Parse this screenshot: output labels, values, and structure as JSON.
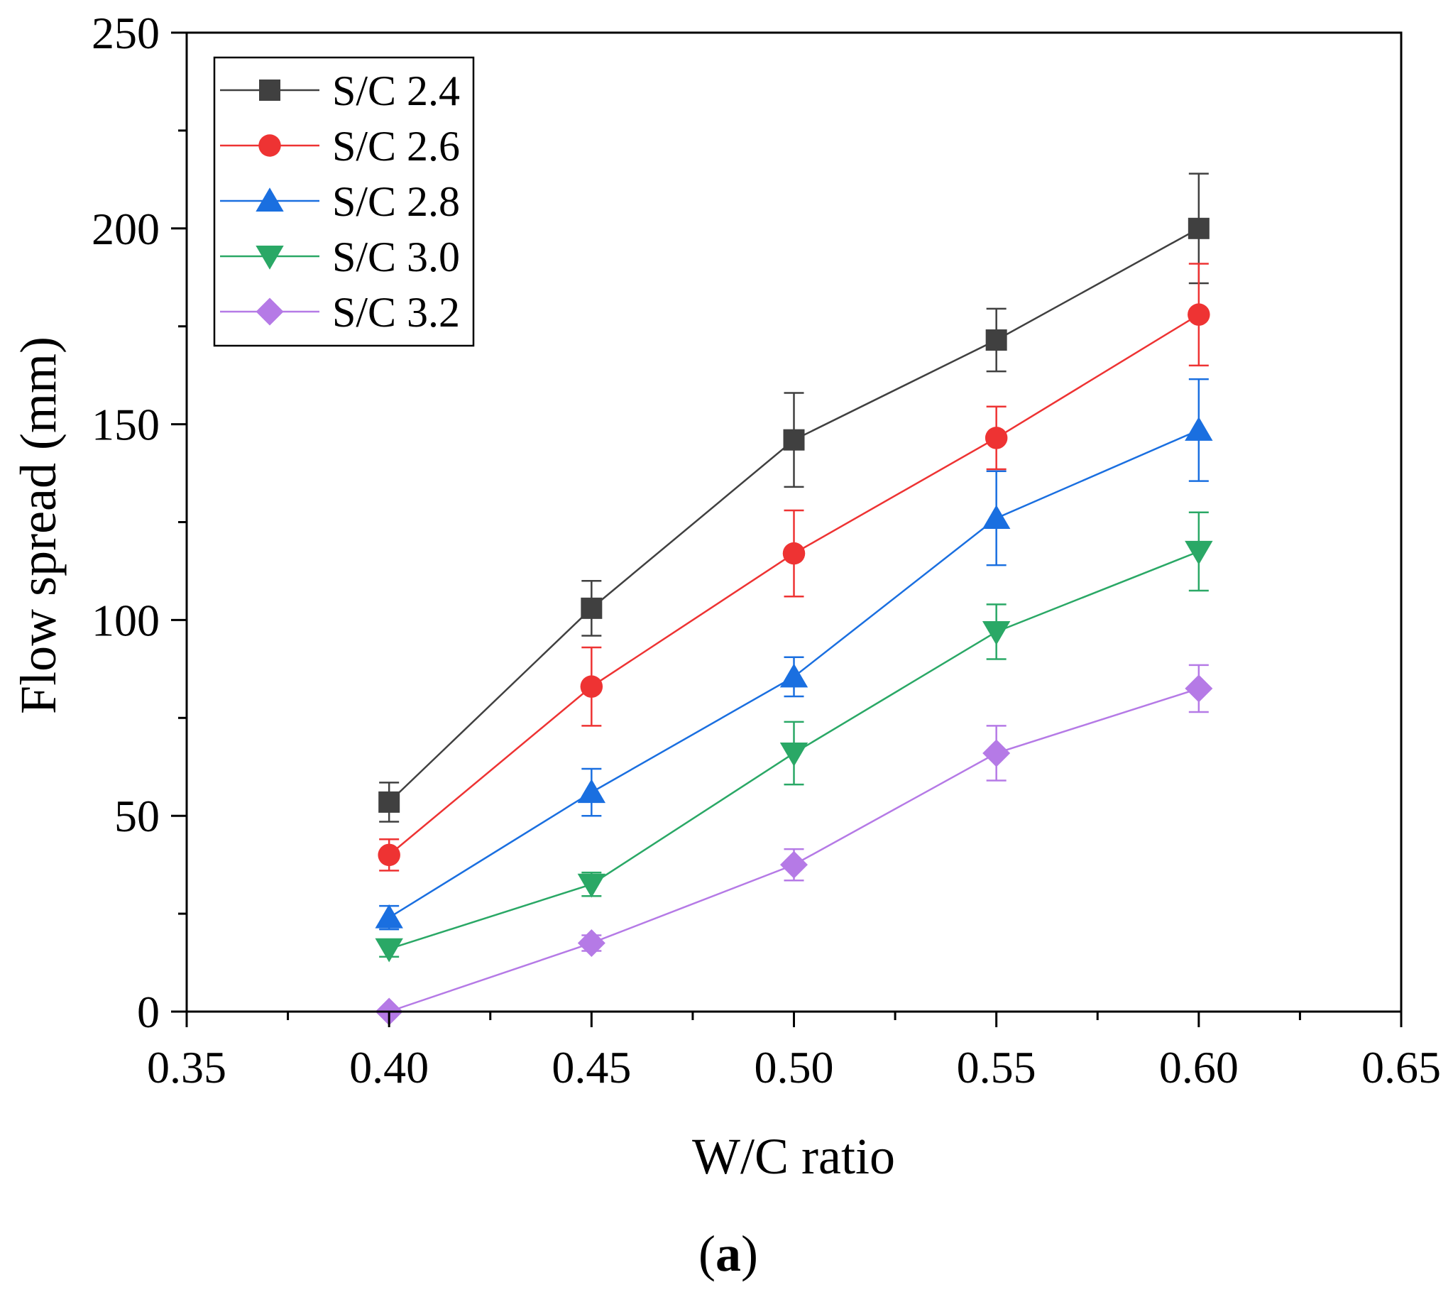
{
  "chart_data": {
    "type": "line",
    "x": [
      0.4,
      0.45,
      0.5,
      0.55,
      0.6
    ],
    "xlabel": "W/C ratio",
    "ylabel": "Flow spread (mm)",
    "xlim": [
      0.35,
      0.65
    ],
    "ylim": [
      0,
      250
    ],
    "xticks": [
      "0.35",
      "0.40",
      "0.45",
      "0.50",
      "0.55",
      "0.60",
      "0.65"
    ],
    "yticks": [
      "0",
      "50",
      "100",
      "150",
      "200",
      "250"
    ],
    "grid": false,
    "legend_position": "top-left",
    "series": [
      {
        "name": "S/C 2.4",
        "color": "#404040",
        "marker": "square",
        "values": [
          53.5,
          103,
          146,
          171.5,
          200
        ],
        "errors": [
          5,
          7,
          12,
          8,
          14
        ]
      },
      {
        "name": "S/C 2.6",
        "color": "#ee3333",
        "marker": "circle",
        "values": [
          40,
          83,
          117,
          146.5,
          178
        ],
        "errors": [
          4,
          10,
          11,
          8,
          13
        ]
      },
      {
        "name": "S/C 2.8",
        "color": "#1a6fe0",
        "marker": "triangle-up",
        "values": [
          24,
          56,
          85.5,
          126,
          148.5
        ],
        "errors": [
          3,
          6,
          5,
          12,
          13
        ]
      },
      {
        "name": "S/C 3.0",
        "color": "#2aa866",
        "marker": "triangle-down",
        "values": [
          16,
          32.5,
          66,
          97,
          117.5
        ],
        "errors": [
          2,
          3,
          8,
          7,
          10
        ]
      },
      {
        "name": "S/C 3.2",
        "color": "#b57ae6",
        "marker": "diamond",
        "values": [
          0,
          17.5,
          37.5,
          66,
          82.5
        ],
        "errors": [
          0,
          2,
          4,
          7,
          6
        ]
      }
    ]
  },
  "caption": {
    "open": "(",
    "label": "a",
    "close": ")"
  }
}
